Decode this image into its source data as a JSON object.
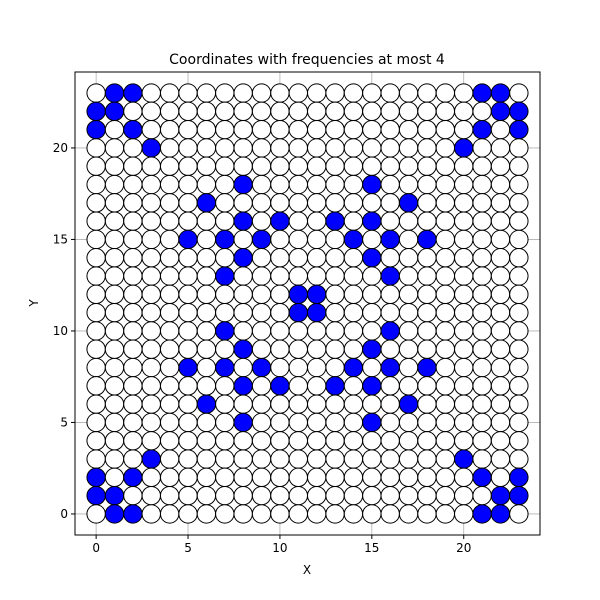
{
  "chart_data": {
    "type": "scatter",
    "title": "Coordinates with frequencies at most 4",
    "xlabel": "X",
    "ylabel": "Y",
    "xlim": [
      -1.15,
      24.15
    ],
    "ylim": [
      -1.15,
      24.15
    ],
    "xticks": [
      0,
      5,
      10,
      15,
      20
    ],
    "yticks": [
      0,
      5,
      10,
      15,
      20
    ],
    "grid": true,
    "grid_range": {
      "x": [
        0,
        23
      ],
      "y": [
        0,
        23
      ]
    },
    "colors": {
      "filled": "#0000ff",
      "empty": "#ffffff",
      "edge": "#000000",
      "grid": "#b0b0b0"
    },
    "filled_points": [
      [
        1,
        23
      ],
      [
        2,
        23
      ],
      [
        21,
        23
      ],
      [
        22,
        23
      ],
      [
        0,
        22
      ],
      [
        1,
        22
      ],
      [
        22,
        22
      ],
      [
        23,
        22
      ],
      [
        0,
        21
      ],
      [
        2,
        21
      ],
      [
        21,
        21
      ],
      [
        23,
        21
      ],
      [
        3,
        20
      ],
      [
        20,
        20
      ],
      [
        8,
        18
      ],
      [
        15,
        18
      ],
      [
        6,
        17
      ],
      [
        17,
        17
      ],
      [
        8,
        16
      ],
      [
        10,
        16
      ],
      [
        13,
        16
      ],
      [
        15,
        16
      ],
      [
        5,
        15
      ],
      [
        7,
        15
      ],
      [
        9,
        15
      ],
      [
        14,
        15
      ],
      [
        16,
        15
      ],
      [
        18,
        15
      ],
      [
        8,
        14
      ],
      [
        15,
        14
      ],
      [
        7,
        13
      ],
      [
        16,
        13
      ],
      [
        11,
        12
      ],
      [
        12,
        12
      ],
      [
        11,
        11
      ],
      [
        12,
        11
      ],
      [
        7,
        10
      ],
      [
        16,
        10
      ],
      [
        8,
        9
      ],
      [
        15,
        9
      ],
      [
        5,
        8
      ],
      [
        7,
        8
      ],
      [
        9,
        8
      ],
      [
        14,
        8
      ],
      [
        16,
        8
      ],
      [
        18,
        8
      ],
      [
        8,
        7
      ],
      [
        10,
        7
      ],
      [
        13,
        7
      ],
      [
        15,
        7
      ],
      [
        6,
        6
      ],
      [
        17,
        6
      ],
      [
        8,
        5
      ],
      [
        15,
        5
      ],
      [
        3,
        3
      ],
      [
        20,
        3
      ],
      [
        0,
        2
      ],
      [
        2,
        2
      ],
      [
        21,
        2
      ],
      [
        23,
        2
      ],
      [
        0,
        1
      ],
      [
        1,
        1
      ],
      [
        22,
        1
      ],
      [
        23,
        1
      ],
      [
        1,
        0
      ],
      [
        2,
        0
      ],
      [
        21,
        0
      ],
      [
        22,
        0
      ]
    ]
  }
}
